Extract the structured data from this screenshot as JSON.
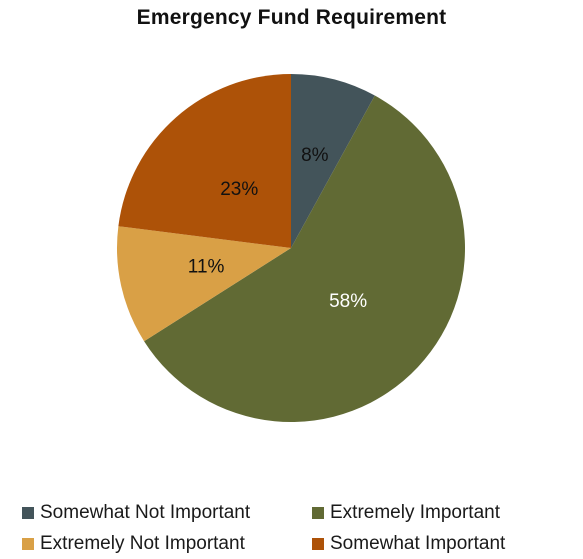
{
  "chart_data": {
    "type": "pie",
    "title": "Emergency Fund Requirement",
    "slices": [
      {
        "label": "Somewhat Not Important",
        "value": 8,
        "display": "8%",
        "color": "#43545a",
        "label_color": "#111111"
      },
      {
        "label": "Extremely Important",
        "value": 58,
        "display": "58%",
        "color": "#616a34",
        "label_color": "#ffffff"
      },
      {
        "label": "Extremely Not Important",
        "value": 11,
        "display": "11%",
        "color": "#d9a046",
        "label_color": "#111111"
      },
      {
        "label": "Somewhat Important",
        "value": 23,
        "display": "23%",
        "color": "#ad5208",
        "label_color": "#111111"
      }
    ],
    "start_angle_deg": 0,
    "direction": "clockwise",
    "legend_placement": "bottom"
  }
}
